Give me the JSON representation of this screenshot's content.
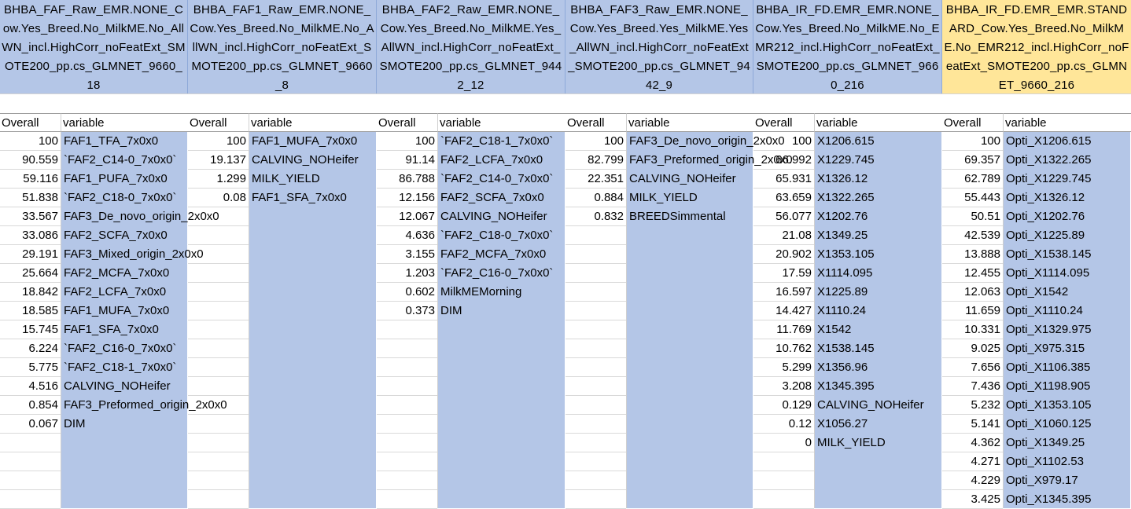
{
  "models": [
    {
      "header": "BHBA_FAF_Raw_EMR.NONE_Cow.Yes_Breed.No_MilkME.No_AllWN_incl.HighCorr_noFeatExt_SMOTE200_pp.cs_GLMNET_9660_18",
      "overall_label": "Overall",
      "variable_label": "variable",
      "rows": [
        {
          "overall": "100",
          "variable": "FAF1_TFA_7x0x0"
        },
        {
          "overall": "90.559",
          "variable": "`FAF2_C14-0_7x0x0`"
        },
        {
          "overall": "59.116",
          "variable": "FAF1_PUFA_7x0x0"
        },
        {
          "overall": "51.838",
          "variable": "`FAF2_C18-0_7x0x0`"
        },
        {
          "overall": "33.567",
          "variable": "FAF3_De_novo_origin_2x0x0"
        },
        {
          "overall": "33.086",
          "variable": "FAF2_SCFA_7x0x0"
        },
        {
          "overall": "29.191",
          "variable": "FAF3_Mixed_origin_2x0x0"
        },
        {
          "overall": "25.664",
          "variable": "FAF2_MCFA_7x0x0"
        },
        {
          "overall": "18.842",
          "variable": "FAF2_LCFA_7x0x0"
        },
        {
          "overall": "18.585",
          "variable": "FAF1_MUFA_7x0x0"
        },
        {
          "overall": "15.745",
          "variable": "FAF1_SFA_7x0x0"
        },
        {
          "overall": "6.224",
          "variable": "`FAF2_C16-0_7x0x0`"
        },
        {
          "overall": "5.775",
          "variable": "`FAF2_C18-1_7x0x0`"
        },
        {
          "overall": "4.516",
          "variable": "CALVING_NOHeifer"
        },
        {
          "overall": "0.854",
          "variable": "FAF3_Preformed_origin_2x0x0"
        },
        {
          "overall": "0.067",
          "variable": "DIM"
        }
      ]
    },
    {
      "header": "BHBA_FAF1_Raw_EMR.NONE_Cow.Yes_Breed.No_MilkME.No_AllWN_incl.HighCorr_noFeatExt_SMOTE200_pp.cs_GLMNET_9660_8",
      "overall_label": "Overall",
      "variable_label": "variable",
      "rows": [
        {
          "overall": "100",
          "variable": "FAF1_MUFA_7x0x0"
        },
        {
          "overall": "19.137",
          "variable": "CALVING_NOHeifer"
        },
        {
          "overall": "1.299",
          "variable": "MILK_YIELD"
        },
        {
          "overall": "0.08",
          "variable": "FAF1_SFA_7x0x0"
        }
      ]
    },
    {
      "header": "BHBA_FAF2_Raw_EMR.NONE_Cow.Yes_Breed.No_MilkME.Yes_AllWN_incl.HighCorr_noFeatExt_SMOTE200_pp.cs_GLMNET_9442_12",
      "overall_label": "Overall",
      "variable_label": "variable",
      "rows": [
        {
          "overall": "100",
          "variable": "`FAF2_C18-1_7x0x0`"
        },
        {
          "overall": "91.14",
          "variable": "FAF2_LCFA_7x0x0"
        },
        {
          "overall": "86.788",
          "variable": "`FAF2_C14-0_7x0x0`"
        },
        {
          "overall": "12.156",
          "variable": "FAF2_SCFA_7x0x0"
        },
        {
          "overall": "12.067",
          "variable": "CALVING_NOHeifer"
        },
        {
          "overall": "4.636",
          "variable": "`FAF2_C18-0_7x0x0`"
        },
        {
          "overall": "3.155",
          "variable": "FAF2_MCFA_7x0x0"
        },
        {
          "overall": "1.203",
          "variable": "`FAF2_C16-0_7x0x0`"
        },
        {
          "overall": "0.602",
          "variable": "MilkMEMorning"
        },
        {
          "overall": "0.373",
          "variable": "DIM"
        }
      ]
    },
    {
      "header": "BHBA_FAF3_Raw_EMR.NONE_Cow.Yes_Breed.Yes_MilkME.Yes_AllWN_incl.HighCorr_noFeatExt_SMOTE200_pp.cs_GLMNET_9442_9",
      "overall_label": "Overall",
      "variable_label": "variable",
      "rows": [
        {
          "overall": "100",
          "variable": "FAF3_De_novo_origin_2x0x0"
        },
        {
          "overall": "82.799",
          "variable": "FAF3_Preformed_origin_2x0x0"
        },
        {
          "overall": "22.351",
          "variable": "CALVING_NOHeifer"
        },
        {
          "overall": "0.884",
          "variable": "MILK_YIELD"
        },
        {
          "overall": "0.832",
          "variable": "BREEDSimmental"
        }
      ]
    },
    {
      "header": "BHBA_IR_FD.EMR_EMR.NONE_Cow.Yes_Breed.No_MilkME.No_EMR212_incl.HighCorr_noFeatExt_SMOTE200_pp.cs_GLMNET_9660_216",
      "overall_label": "Overall",
      "variable_label": "variable",
      "rows": [
        {
          "overall": "100",
          "variable": "X1206.615"
        },
        {
          "overall": "66.992",
          "variable": "X1229.745"
        },
        {
          "overall": "65.931",
          "variable": "X1326.12"
        },
        {
          "overall": "63.659",
          "variable": "X1322.265"
        },
        {
          "overall": "56.077",
          "variable": "X1202.76"
        },
        {
          "overall": "21.08",
          "variable": "X1349.25"
        },
        {
          "overall": "20.902",
          "variable": "X1353.105"
        },
        {
          "overall": "17.59",
          "variable": "X1114.095"
        },
        {
          "overall": "16.597",
          "variable": "X1225.89"
        },
        {
          "overall": "14.427",
          "variable": "X1110.24"
        },
        {
          "overall": "11.769",
          "variable": "X1542"
        },
        {
          "overall": "10.762",
          "variable": "X1538.145"
        },
        {
          "overall": "5.299",
          "variable": "X1356.96"
        },
        {
          "overall": "3.208",
          "variable": "X1345.395"
        },
        {
          "overall": "0.129",
          "variable": "CALVING_NOHeifer"
        },
        {
          "overall": "0.12",
          "variable": "X1056.27"
        },
        {
          "overall": "0",
          "variable": "MILK_YIELD"
        }
      ]
    },
    {
      "header": "BHBA_IR_FD.EMR_EMR.STANDARD_Cow.Yes_Breed.No_MilkME.No_EMR212_incl.HighCorr_noFeatExt_SMOTE200_pp.cs_GLMNET_9660_216",
      "overall_label": "Overall",
      "variable_label": "variable",
      "rows": [
        {
          "overall": "100",
          "variable": "Opti_X1206.615"
        },
        {
          "overall": "69.357",
          "variable": "Opti_X1322.265"
        },
        {
          "overall": "62.789",
          "variable": "Opti_X1229.745"
        },
        {
          "overall": "55.443",
          "variable": "Opti_X1326.12"
        },
        {
          "overall": "50.51",
          "variable": "Opti_X1202.76"
        },
        {
          "overall": "42.539",
          "variable": "Opti_X1225.89"
        },
        {
          "overall": "13.888",
          "variable": "Opti_X1538.145"
        },
        {
          "overall": "12.455",
          "variable": "Opti_X1114.095"
        },
        {
          "overall": "12.063",
          "variable": "Opti_X1542"
        },
        {
          "overall": "11.659",
          "variable": "Opti_X1110.24"
        },
        {
          "overall": "10.331",
          "variable": "Opti_X1329.975"
        },
        {
          "overall": "9.025",
          "variable": "Opti_X975.315"
        },
        {
          "overall": "7.656",
          "variable": "Opti_X1106.385"
        },
        {
          "overall": "7.436",
          "variable": "Opti_X1198.905"
        },
        {
          "overall": "5.232",
          "variable": "Opti_X1353.105"
        },
        {
          "overall": "5.141",
          "variable": "Opti_X1060.125"
        },
        {
          "overall": "4.362",
          "variable": "Opti_X1349.25"
        },
        {
          "overall": "4.271",
          "variable": "Opti_X1102.53"
        },
        {
          "overall": "4.229",
          "variable": "Opti_X979.17"
        },
        {
          "overall": "3.425",
          "variable": "Opti_X1345.395"
        }
      ]
    }
  ],
  "colors": {
    "header_fill": "#b4c6e7",
    "header_highlight": "#ffe699",
    "variable_fill": "#b4c6e7"
  }
}
